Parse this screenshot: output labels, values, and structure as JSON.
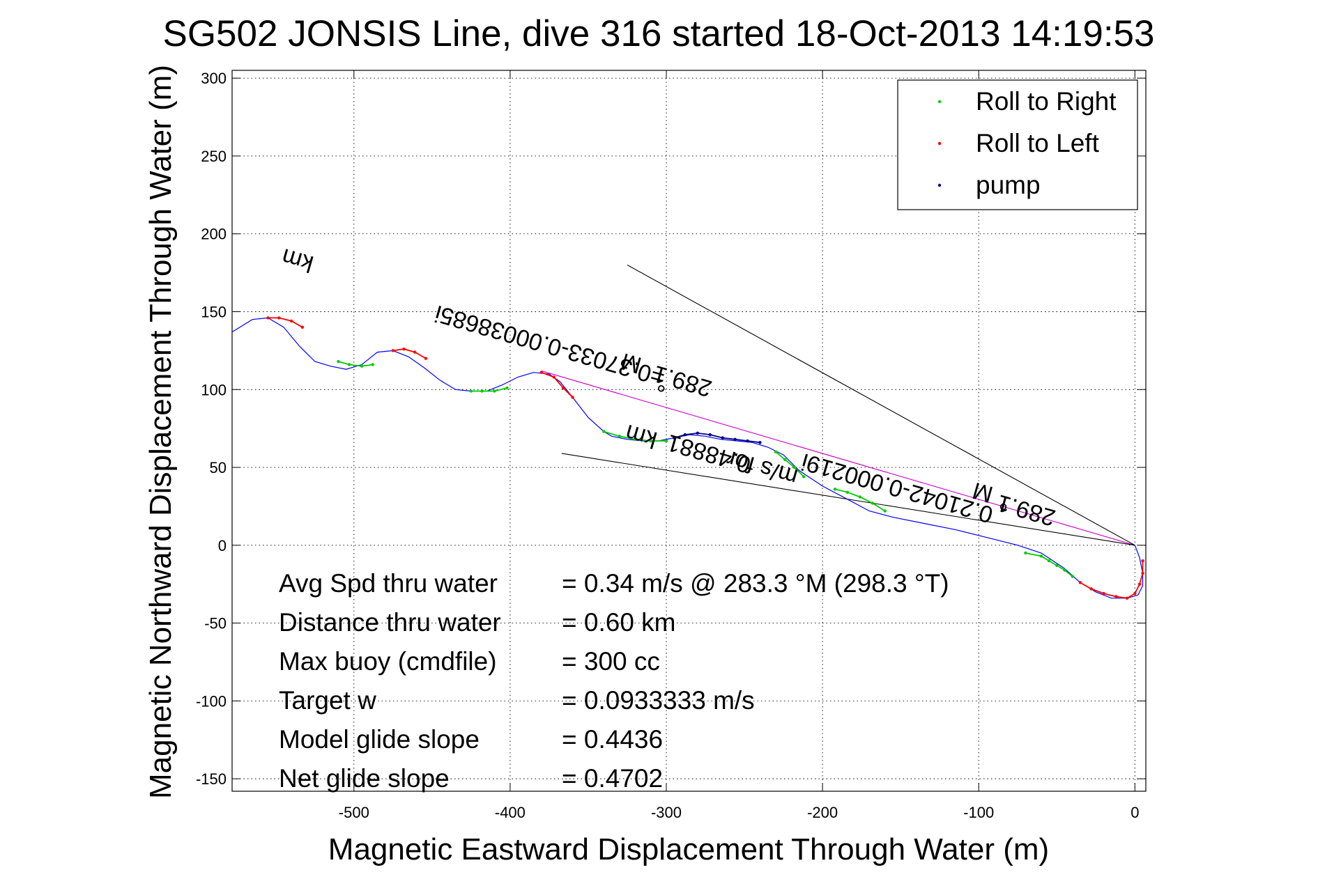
{
  "chart_data": {
    "type": "line",
    "title": "SG502 JONSIS Line, dive 316 started 18-Oct-2013 14:19:53",
    "xlabel": "Magnetic Eastward Displacement Through Water (m)",
    "ylabel": "Magnetic Northward Displacement Through Water (m)",
    "xlim": [
      -578,
      7
    ],
    "ylim": [
      -158,
      305
    ],
    "xticks": [
      -500,
      -400,
      -300,
      -200,
      -100,
      0
    ],
    "yticks": [
      -150,
      -100,
      -50,
      0,
      50,
      100,
      150,
      200,
      250,
      300
    ],
    "grid": true,
    "legend_position": "top-right",
    "legend": [
      {
        "label": "Roll to Right",
        "color": "#00cc00"
      },
      {
        "label": "Roll to Left",
        "color": "#ff0000"
      },
      {
        "label": "pump",
        "color": "#000080"
      }
    ],
    "track": {
      "name": "",
      "color": "#0000ff",
      "x": [
        0,
        3,
        5,
        5,
        2,
        -5,
        -15,
        -25,
        -35,
        -45,
        -60,
        -75,
        -95,
        -115,
        -135,
        -155,
        -170,
        -185,
        -200,
        -215,
        -225,
        -235,
        -245,
        -255,
        -265,
        -275,
        -285,
        -295,
        -305,
        -315,
        -325,
        -335,
        -340,
        -350,
        -360,
        -368,
        -375,
        -385,
        -395,
        -405,
        -415,
        -425,
        -435,
        -445,
        -455,
        -465,
        -475,
        -485,
        -495,
        -505,
        -515,
        -525,
        -535,
        -545,
        -555,
        -565,
        -578
      ],
      "y": [
        0,
        -8,
        -18,
        -26,
        -32,
        -34,
        -34,
        -30,
        -24,
        -15,
        -5,
        0,
        5,
        10,
        14,
        18,
        22,
        30,
        38,
        48,
        58,
        63,
        66,
        67,
        68,
        70,
        71,
        69,
        67,
        67,
        68,
        70,
        73,
        82,
        95,
        105,
        110,
        111,
        108,
        103,
        99,
        99,
        100,
        106,
        114,
        121,
        125,
        124,
        116,
        113,
        115,
        118,
        128,
        140,
        146,
        145,
        137
      ]
    },
    "segments": [
      {
        "series": "Roll to Right",
        "x": [
          -70,
          -60,
          -55,
          -50,
          -45,
          -40
        ],
        "y": [
          -5,
          -7,
          -10,
          -13,
          -16,
          -20
        ]
      },
      {
        "series": "Roll to Left",
        "x": [
          -35,
          -28,
          -20,
          -12,
          -5,
          0,
          3,
          5,
          5
        ],
        "y": [
          -24,
          -28,
          -31,
          -33,
          -34,
          -31,
          -25,
          -18,
          -10
        ]
      },
      {
        "series": "Roll to Right",
        "x": [
          -192,
          -184,
          -176,
          -168,
          -160
        ],
        "y": [
          36,
          34,
          31,
          27,
          22
        ]
      },
      {
        "series": "Roll to Right",
        "x": [
          -230,
          -224,
          -218,
          -212
        ],
        "y": [
          60,
          55,
          50,
          44
        ]
      },
      {
        "series": "pump",
        "x": [
          -295,
          -288,
          -280,
          -272,
          -264,
          -256,
          -248,
          -240
        ],
        "y": [
          69,
          71,
          72,
          71,
          69,
          68,
          67,
          66
        ]
      },
      {
        "series": "Roll to Right",
        "x": [
          -340,
          -330,
          -320,
          -310,
          -300
        ],
        "y": [
          73,
          70,
          68,
          67,
          67
        ]
      },
      {
        "series": "Roll to Left",
        "x": [
          -380,
          -372,
          -366,
          -360
        ],
        "y": [
          111,
          108,
          101,
          95
        ]
      },
      {
        "series": "Roll to Right",
        "x": [
          -425,
          -418,
          -410,
          -402
        ],
        "y": [
          99,
          99,
          99,
          101
        ]
      },
      {
        "series": "Roll to Left",
        "x": [
          -475,
          -468,
          -461,
          -454
        ],
        "y": [
          125,
          126,
          124,
          120
        ]
      },
      {
        "series": "Roll to Right",
        "x": [
          -510,
          -503,
          -495,
          -488
        ],
        "y": [
          118,
          116,
          115,
          116
        ]
      },
      {
        "series": "Roll to Left",
        "x": [
          -555,
          -548,
          -540,
          -533
        ],
        "y": [
          146,
          146,
          144,
          140
        ]
      }
    ],
    "reference_lines": [
      {
        "color": "#cc00cc",
        "x": [
          0,
          -380
        ],
        "y": [
          0,
          112
        ]
      },
      {
        "color": "#000000",
        "x": [
          0,
          -325
        ],
        "y": [
          0,
          180
        ]
      },
      {
        "color": "#000000",
        "x": [
          0,
          -367
        ],
        "y": [
          0,
          59
        ]
      }
    ],
    "annotations": [
      {
        "text": "0.21042-0.000219i",
        "anchor": [
          -90,
          24
        ],
        "rotation": 196
      },
      {
        "text": "m/s for",
        "anchor": [
          -215,
          48
        ],
        "rotation": 196
      },
      {
        "text": "0.48881",
        "anchor": [
          -245,
          56
        ],
        "rotation": 196
      },
      {
        "text": "km",
        "anchor": [
          -305,
          72
        ],
        "rotation": 196
      },
      {
        "text": "=0.37033-0.00038685i",
        "anchor": [
          -300,
          112
        ],
        "rotation": 196
      },
      {
        "text": "km",
        "anchor": [
          -525,
          185
        ],
        "rotation": 196
      },
      {
        "text": "289.1",
        "anchor": [
          -270,
          105
        ],
        "rotation": 196
      },
      {
        "text": "M",
        "anchor": [
          -315,
          120
        ],
        "rotation": 196
      },
      {
        "text": "289.1",
        "anchor": [
          -50,
          22
        ],
        "rotation": 196
      },
      {
        "text": "M",
        "anchor": [
          -90,
          37
        ],
        "rotation": 196
      },
      {
        "text": "°",
        "anchor": [
          -298,
          108
        ],
        "rotation": 196
      },
      {
        "text": "°",
        "anchor": [
          -79,
          32
        ],
        "rotation": 196
      }
    ],
    "stats": [
      {
        "label": "Avg Spd thru water",
        "value": "=  0.34 m/s @ 283.3 °M (298.3 °T)"
      },
      {
        "label": "Distance thru water",
        "value": "=  0.60 km"
      },
      {
        "label": "Max buoy (cmdfile)",
        "value": "= 300 cc"
      },
      {
        "label": "Target w",
        "value": "= 0.0933333 m/s"
      },
      {
        "label": "Model glide slope",
        "value": "= 0.4436"
      },
      {
        "label": "Net glide slope",
        "value": "= 0.4702"
      }
    ]
  }
}
